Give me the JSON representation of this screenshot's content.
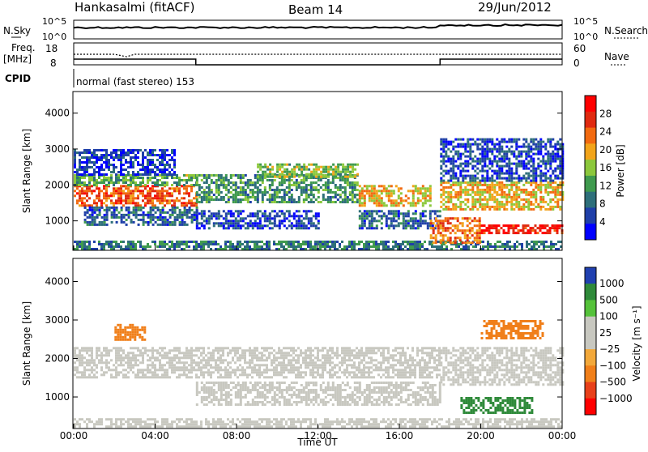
{
  "header": {
    "station": "Hankasalmi (fitACF)",
    "beam": "Beam 14",
    "date": "29/Jun/2012"
  },
  "noise_panel": {
    "left_label": "N.Sky",
    "right_label": "N.Search",
    "left_ticks": [
      "10^5",
      "10^0"
    ],
    "right_ticks": [
      "10^5",
      "10^0"
    ]
  },
  "freq_panel": {
    "left_label_1": "Freq.",
    "left_label_2": "[MHz]",
    "right_label": "Nave",
    "left_ticks": [
      "18",
      "8"
    ],
    "right_ticks": [
      "60",
      "0"
    ]
  },
  "cpid": {
    "label": "CPID",
    "program_text": "normal (fast stereo) 153"
  },
  "colors": {
    "power_scale": [
      "#0000ff",
      "#1f3fa8",
      "#2e6f7a",
      "#3f9a4e",
      "#8cc83c",
      "#f2a41a",
      "#f26a10",
      "#e02a10",
      "#ff0000"
    ],
    "velocity_scale": [
      "#ff0000",
      "#e8401a",
      "#f07f1a",
      "#f2a83a",
      "#c8c8c0",
      "#c8c8c0",
      "#55c23a",
      "#2f8a3a",
      "#2040b0"
    ],
    "ground_scatter": "#c8c8c0"
  },
  "x_ticks": [
    "00:00",
    "04:00",
    "08:00",
    "12:00",
    "16:00",
    "20:00",
    "00:00"
  ],
  "x_label": "Time UT",
  "chart_data": [
    {
      "type": "heatmap",
      "name": "power",
      "ylabel": "Slant Range [km]",
      "ylim": [
        180,
        4600
      ],
      "xlim_hours": [
        0,
        24
      ],
      "y_ticks": [
        1000,
        2000,
        3000,
        4000
      ],
      "colorbar": {
        "label": "Power [dB]",
        "ticks": [
          "4",
          "8",
          "12",
          "16",
          "20",
          "24",
          "28"
        ],
        "range": [
          0,
          30
        ]
      },
      "bands": [
        {
          "t0": 0.0,
          "t1": 6.0,
          "r0": 1400,
          "r1": 2000,
          "level": 26
        },
        {
          "t0": 0.0,
          "t1": 6.0,
          "r0": 2000,
          "r1": 2300,
          "level": 14
        },
        {
          "t0": 0.5,
          "t1": 6.0,
          "r0": 900,
          "r1": 1400,
          "level": 8
        },
        {
          "t0": 0.0,
          "t1": 24.0,
          "r0": 200,
          "r1": 450,
          "level": 10
        },
        {
          "t0": 6.0,
          "t1": 14.0,
          "r0": 1500,
          "r1": 2300,
          "level": 12
        },
        {
          "t0": 9.0,
          "t1": 14.0,
          "r0": 2200,
          "r1": 2600,
          "level": 16
        },
        {
          "t0": 6.0,
          "t1": 12.0,
          "r0": 800,
          "r1": 1300,
          "level": 6
        },
        {
          "t0": 14.0,
          "t1": 17.5,
          "r0": 1400,
          "r1": 2000,
          "level": 20
        },
        {
          "t0": 14.0,
          "t1": 18.0,
          "r0": 800,
          "r1": 1300,
          "level": 8
        },
        {
          "t0": 17.5,
          "t1": 20.0,
          "r0": 400,
          "r1": 1100,
          "level": 24
        },
        {
          "t0": 18.0,
          "t1": 24.0,
          "r0": 1300,
          "r1": 2100,
          "level": 20
        },
        {
          "t0": 20.0,
          "t1": 24.0,
          "r0": 650,
          "r1": 900,
          "level": 30
        },
        {
          "t0": 18.0,
          "t1": 24.0,
          "r0": 2100,
          "r1": 3300,
          "level": 6
        },
        {
          "t0": 0.0,
          "t1": 5.0,
          "r0": 2300,
          "r1": 3000,
          "level": 5
        }
      ]
    },
    {
      "type": "heatmap",
      "name": "velocity",
      "ylabel": "Slant Range [km]",
      "ylim": [
        180,
        4600
      ],
      "xlim_hours": [
        0,
        24
      ],
      "y_ticks": [
        1000,
        2000,
        3000,
        4000
      ],
      "colorbar": {
        "label": "Velocity [m s⁻¹]",
        "ticks": [
          "1000",
          "500",
          "100",
          "25",
          "−25",
          "−100",
          "−500",
          "−1000"
        ]
      },
      "bands": [
        {
          "t0": 0.0,
          "t1": 18.0,
          "r0": 1500,
          "r1": 2300,
          "level": 0
        },
        {
          "t0": 0.0,
          "t1": 24.0,
          "r0": 200,
          "r1": 450,
          "level": 0
        },
        {
          "t0": 6.0,
          "t1": 18.0,
          "r0": 800,
          "r1": 1400,
          "level": 0
        },
        {
          "t0": 18.0,
          "t1": 24.0,
          "r0": 1300,
          "r1": 2300,
          "level": 0
        },
        {
          "t0": 19.0,
          "t1": 22.5,
          "r0": 600,
          "r1": 1000,
          "level": 150
        },
        {
          "t0": 2.0,
          "t1": 3.5,
          "r0": 2500,
          "r1": 2900,
          "level": -300
        },
        {
          "t0": 20.0,
          "t1": 23.0,
          "r0": 2500,
          "r1": 3000,
          "level": -150
        }
      ]
    }
  ]
}
